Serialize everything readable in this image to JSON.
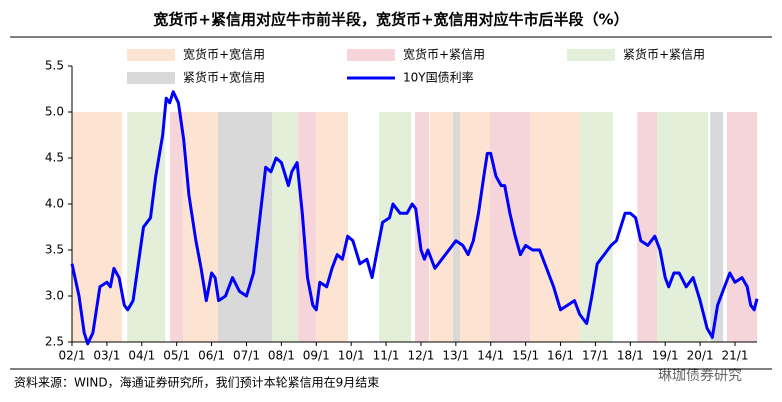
{
  "chart_data": {
    "type": "line",
    "title": "宽货币+紧信用对应牛市前半段，宽货币+宽信用对应牛市后半段（%）",
    "note": "资料来源：WIND，海通证券研究所，我们预计本轮紧信用在9月结束",
    "watermark": "琳珈债券研究",
    "regimes": [
      {
        "name": "宽货币+宽信用",
        "color": "#fde4d2"
      },
      {
        "name": "宽货币+紧信用",
        "color": "#f6d5da"
      },
      {
        "name": "紧货币+紧信用",
        "color": "#e4efda"
      },
      {
        "name": "紧货币+宽信用",
        "color": "#d9d9d9"
      }
    ],
    "periods": [
      {
        "regime": 0,
        "start": 2002.0,
        "end": 2003.43
      },
      {
        "regime": 2,
        "start": 2003.58,
        "end": 2004.67
      },
      {
        "regime": 1,
        "start": 2004.81,
        "end": 2005.18
      },
      {
        "regime": 0,
        "start": 2005.18,
        "end": 2006.18
      },
      {
        "regime": 3,
        "start": 2006.18,
        "end": 2007.73
      },
      {
        "regime": 2,
        "start": 2007.73,
        "end": 2008.48
      },
      {
        "regime": 1,
        "start": 2008.48,
        "end": 2008.99
      },
      {
        "regime": 0,
        "start": 2008.99,
        "end": 2009.91
      },
      {
        "regime": 2,
        "start": 2010.8,
        "end": 2011.72
      },
      {
        "regime": 1,
        "start": 2011.83,
        "end": 2012.23
      },
      {
        "regime": 0,
        "start": 2012.26,
        "end": 2012.92
      },
      {
        "regime": 3,
        "start": 2012.92,
        "end": 2013.12
      },
      {
        "regime": 0,
        "start": 2013.12,
        "end": 2013.98
      },
      {
        "regime": 1,
        "start": 2013.98,
        "end": 2015.13
      },
      {
        "regime": 0,
        "start": 2015.13,
        "end": 2016.56
      },
      {
        "regime": 2,
        "start": 2016.56,
        "end": 2017.5
      },
      {
        "regime": 1,
        "start": 2018.2,
        "end": 2018.77
      },
      {
        "regime": 2,
        "start": 2018.77,
        "end": 2020.23
      },
      {
        "regime": 3,
        "start": 2020.29,
        "end": 2020.66
      },
      {
        "regime": 1,
        "start": 2020.77,
        "end": 2021.63
      }
    ],
    "series": [
      {
        "name": "10Y国债利率",
        "color": "#0000ff"
      }
    ],
    "x": [
      2002.0,
      2002.2,
      2002.35,
      2002.45,
      2002.6,
      2002.8,
      2003.0,
      2003.1,
      2003.2,
      2003.35,
      2003.5,
      2003.6,
      2003.75,
      2003.9,
      2004.05,
      2004.25,
      2004.4,
      2004.6,
      2004.7,
      2004.8,
      2004.9,
      2005.05,
      2005.2,
      2005.35,
      2005.55,
      2005.7,
      2005.85,
      2006.0,
      2006.1,
      2006.2,
      2006.4,
      2006.6,
      2006.8,
      2007.0,
      2007.2,
      2007.4,
      2007.55,
      2007.7,
      2007.85,
      2008.0,
      2008.2,
      2008.3,
      2008.45,
      2008.6,
      2008.75,
      2008.9,
      2009.0,
      2009.1,
      2009.3,
      2009.45,
      2009.6,
      2009.75,
      2009.9,
      2010.05,
      2010.25,
      2010.45,
      2010.6,
      2010.75,
      2010.9,
      2011.1,
      2011.2,
      2011.4,
      2011.6,
      2011.75,
      2011.85,
      2012.0,
      2012.1,
      2012.2,
      2012.4,
      2012.6,
      2012.8,
      2013.0,
      2013.2,
      2013.35,
      2013.5,
      2013.65,
      2013.8,
      2013.9,
      2014.0,
      2014.15,
      2014.3,
      2014.4,
      2014.55,
      2014.7,
      2014.85,
      2015.0,
      2015.2,
      2015.4,
      2015.6,
      2015.8,
      2016.0,
      2016.2,
      2016.4,
      2016.55,
      2016.75,
      2016.9,
      2017.05,
      2017.25,
      2017.45,
      2017.6,
      2017.85,
      2018.0,
      2018.15,
      2018.3,
      2018.5,
      2018.7,
      2018.85,
      2019.0,
      2019.1,
      2019.25,
      2019.4,
      2019.6,
      2019.8,
      2020.0,
      2020.2,
      2020.35,
      2020.5,
      2020.65,
      2020.85,
      2021.0,
      2021.2,
      2021.35,
      2021.45,
      2021.55,
      2021.63
    ],
    "values": [
      3.35,
      3.0,
      2.6,
      2.48,
      2.6,
      3.1,
      3.15,
      3.1,
      3.3,
      3.2,
      2.9,
      2.85,
      2.95,
      3.35,
      3.75,
      3.85,
      4.3,
      4.75,
      5.15,
      5.1,
      5.22,
      5.1,
      4.7,
      4.1,
      3.6,
      3.3,
      2.95,
      3.25,
      3.2,
      2.95,
      3.0,
      3.2,
      3.05,
      3.0,
      3.25,
      3.9,
      4.4,
      4.35,
      4.5,
      4.45,
      4.2,
      4.35,
      4.45,
      3.9,
      3.2,
      2.9,
      2.85,
      3.15,
      3.1,
      3.3,
      3.45,
      3.4,
      3.65,
      3.6,
      3.35,
      3.4,
      3.2,
      3.5,
      3.8,
      3.85,
      4.0,
      3.9,
      3.9,
      4.0,
      3.95,
      3.5,
      3.4,
      3.5,
      3.3,
      3.4,
      3.5,
      3.6,
      3.55,
      3.45,
      3.6,
      3.9,
      4.3,
      4.55,
      4.55,
      4.3,
      4.2,
      4.2,
      3.9,
      3.65,
      3.45,
      3.55,
      3.5,
      3.5,
      3.3,
      3.1,
      2.85,
      2.9,
      2.95,
      2.8,
      2.7,
      3.0,
      3.35,
      3.45,
      3.55,
      3.6,
      3.9,
      3.9,
      3.85,
      3.6,
      3.55,
      3.65,
      3.5,
      3.2,
      3.1,
      3.25,
      3.25,
      3.1,
      3.2,
      2.95,
      2.65,
      2.55,
      2.9,
      3.05,
      3.25,
      3.15,
      3.2,
      3.1,
      2.9,
      2.85,
      2.97
    ],
    "xlim": [
      2002.0,
      2021.63
    ],
    "ylim": [
      2.5,
      5.5
    ],
    "yticks": [
      {
        "value": 2.5,
        "label": "2.5"
      },
      {
        "value": 3.0,
        "label": "3.0"
      },
      {
        "value": 3.5,
        "label": "3.5"
      },
      {
        "value": 4.0,
        "label": "4.0"
      },
      {
        "value": 4.5,
        "label": "4.5"
      },
      {
        "value": 5.0,
        "label": "5.0"
      },
      {
        "value": 5.5,
        "label": "5.5"
      }
    ],
    "xticks": [
      {
        "value": 2002,
        "label": "02/1"
      },
      {
        "value": 2003,
        "label": "03/1"
      },
      {
        "value": 2004,
        "label": "04/1"
      },
      {
        "value": 2005,
        "label": "05/1"
      },
      {
        "value": 2006,
        "label": "06/1"
      },
      {
        "value": 2007,
        "label": "07/1"
      },
      {
        "value": 2008,
        "label": "08/1"
      },
      {
        "value": 2009,
        "label": "09/1"
      },
      {
        "value": 2010,
        "label": "10/1"
      },
      {
        "value": 2011,
        "label": "11/1"
      },
      {
        "value": 2012,
        "label": "12/1"
      },
      {
        "value": 2013,
        "label": "13/1"
      },
      {
        "value": 2014,
        "label": "14/1"
      },
      {
        "value": 2015,
        "label": "15/1"
      },
      {
        "value": 2016,
        "label": "16/1"
      },
      {
        "value": 2017,
        "label": "17/1"
      },
      {
        "value": 2018,
        "label": "18/1"
      },
      {
        "value": 2019,
        "label": "19/1"
      },
      {
        "value": 2020,
        "label": "20/1"
      },
      {
        "value": 2021,
        "label": "21/1"
      }
    ]
  }
}
